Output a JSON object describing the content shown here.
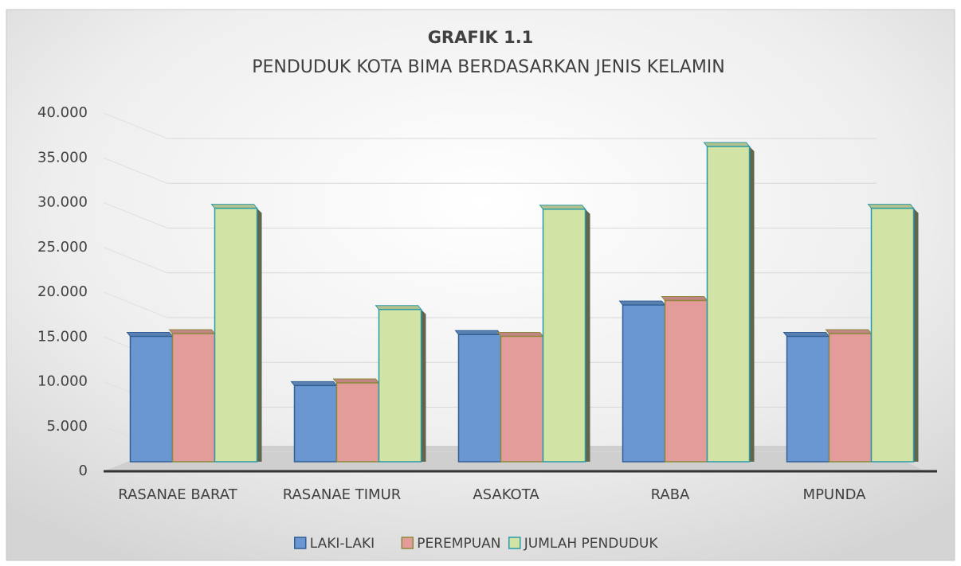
{
  "chart_data": {
    "type": "bar",
    "title": "GRAFIK 1.1",
    "subtitle": "PENDUDUK KOTA BIMA BERDASARKAN JENIS KELAMIN",
    "categories": [
      "RASANAE BARAT",
      "RASANAE TIMUR",
      "ASAKOTA",
      "RABA",
      "MPUNDA"
    ],
    "series": [
      {
        "name": "LAKI-LAKI",
        "color": "#6a97d1",
        "values": [
          14000,
          8500,
          14200,
          17500,
          14000
        ]
      },
      {
        "name": "PEREMPUAN",
        "color": "#e49c9a",
        "values": [
          14300,
          8800,
          14000,
          18000,
          14300
        ]
      },
      {
        "name": "JUMLAH PENDUDUK",
        "color": "#d2e3a6",
        "values": [
          28300,
          17000,
          28200,
          35200,
          28300
        ]
      }
    ],
    "ylim": [
      0,
      40000
    ],
    "yticks": [
      0,
      {
        "value": 5000,
        "label": "5.000"
      },
      {
        "value": 10000,
        "label": "10.000"
      },
      {
        "value": 15000,
        "label": "15.000"
      },
      {
        "value": 20000,
        "label": "20.000"
      },
      {
        "value": 25000,
        "label": "25.000"
      },
      {
        "value": 30000,
        "label": "30.000"
      },
      {
        "value": 35000,
        "label": "35.000"
      },
      {
        "value": 40000,
        "label": "40.000"
      }
    ],
    "grid": true,
    "legend": "bottom"
  }
}
